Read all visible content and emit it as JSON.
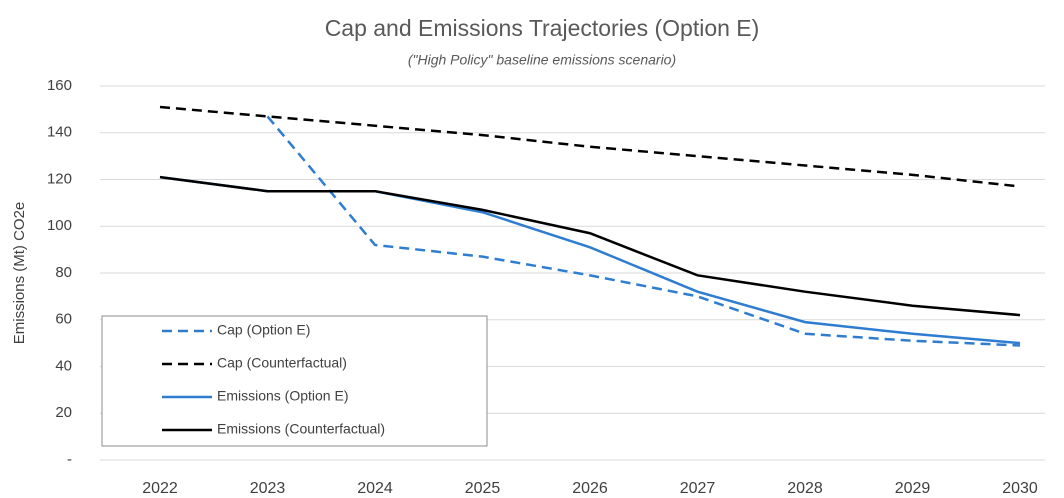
{
  "chart_data": {
    "type": "line",
    "title": "Cap and Emissions Trajectories (Option E)",
    "subtitle": "(\"High Policy\" baseline emissions scenario)",
    "y_label": "Emissions (Mt) CO2e",
    "categories": [
      "2022",
      "2023",
      "2024",
      "2025",
      "2026",
      "2027",
      "2028",
      "2029",
      "2030"
    ],
    "series": [
      {
        "name": "Cap (Option E)",
        "color": "#2e7dd1",
        "dashed": true,
        "values": [
          null,
          147,
          92,
          87,
          79,
          70,
          54,
          51,
          49
        ]
      },
      {
        "name": "Cap (Counterfactual)",
        "color": "#000000",
        "dashed": true,
        "values": [
          151,
          147,
          143,
          139,
          134,
          130,
          126,
          122,
          117
        ]
      },
      {
        "name": "Emissions (Option E)",
        "color": "#2e7dd1",
        "dashed": false,
        "values": [
          121,
          115,
          115,
          106,
          91,
          72,
          59,
          54,
          50
        ]
      },
      {
        "name": "Emissions (Counterfactual)",
        "color": "#000000",
        "dashed": false,
        "values": [
          121,
          115,
          115,
          107,
          97,
          79,
          72,
          66,
          62
        ]
      }
    ],
    "ylim": [
      0,
      160
    ],
    "yticks": [
      {
        "value": 0,
        "label": "-"
      },
      20,
      40,
      60,
      80,
      100,
      120,
      140,
      160
    ],
    "grid": true,
    "legend": "bottom-left"
  }
}
